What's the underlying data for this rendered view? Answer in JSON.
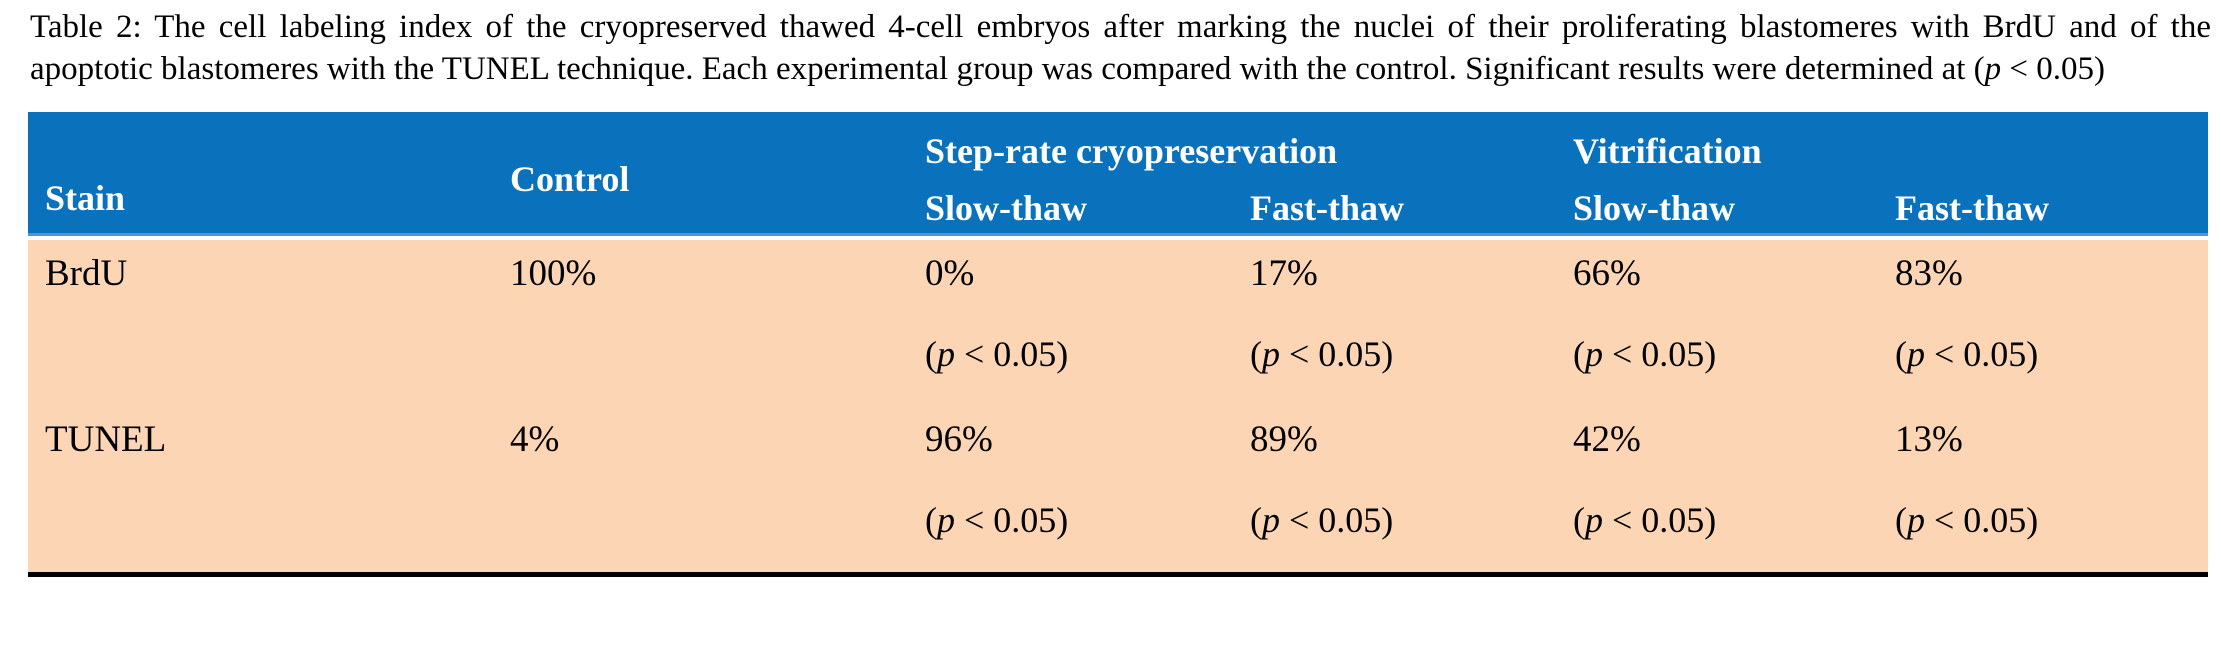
{
  "caption": "Table 2: The cell labeling index of the cryopreserved thawed 4-cell embryos after marking the nuclei of their proliferating blastomeres with BrdU and of the apoptotic blastomeres with the TUNEL technique. Each experimental group was compared with the control. Significant results were determined at (p < 0.05)",
  "colors": {
    "header_bg": "#0A71BD",
    "header_rule": "#4D96D6",
    "header_text": "#FFFFFF",
    "body_bg": "#FCD5B4",
    "body_text": "#000000",
    "bottom_rule": "#000000"
  },
  "table": {
    "header": {
      "stain": "Stain",
      "control": "Control",
      "groups": [
        {
          "label": "Step-rate cryopreservation",
          "subcols": [
            "Slow-thaw",
            "Fast-thaw"
          ]
        },
        {
          "label": "Vitrification",
          "subcols": [
            "Slow-thaw",
            "Fast-thaw"
          ]
        }
      ]
    },
    "rows": [
      {
        "stain": "BrdU",
        "control": "100%",
        "cells": [
          {
            "value": "0%",
            "p": "(p < 0.05)"
          },
          {
            "value": "17%",
            "p": "(p < 0.05)"
          },
          {
            "value": "66%",
            "p": "(p < 0.05)"
          },
          {
            "value": "83%",
            "p": "(p < 0.05)"
          }
        ]
      },
      {
        "stain": "TUNEL",
        "control": "4%",
        "cells": [
          {
            "value": "96%",
            "p": "(p < 0.05)"
          },
          {
            "value": "89%",
            "p": "(p < 0.05)"
          },
          {
            "value": "42%",
            "p": "(p < 0.05)"
          },
          {
            "value": "13%",
            "p": "(p < 0.05)"
          }
        ]
      }
    ]
  }
}
